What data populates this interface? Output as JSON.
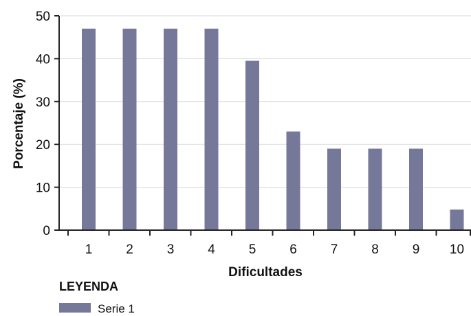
{
  "chart_data": {
    "type": "bar",
    "xlabel": "Dificultades",
    "ylabel": "Porcentaje (%)",
    "ylim": [
      0,
      50
    ],
    "yticks": [
      0,
      10,
      20,
      30,
      40,
      50
    ],
    "categories": [
      "1",
      "2",
      "3",
      "4",
      "5",
      "6",
      "7",
      "8",
      "9",
      "10"
    ],
    "series": [
      {
        "name": "Serie 1",
        "values": [
          47,
          47,
          47,
          47,
          39.5,
          23,
          19,
          19,
          19,
          4.8
        ]
      }
    ],
    "grid": "horizontal",
    "legend": {
      "title": "LEYENDA",
      "placement": "bottom-left"
    },
    "colors": {
      "bar": "#757898",
      "grid": "#d9d9d9",
      "axis": "#222222"
    }
  }
}
